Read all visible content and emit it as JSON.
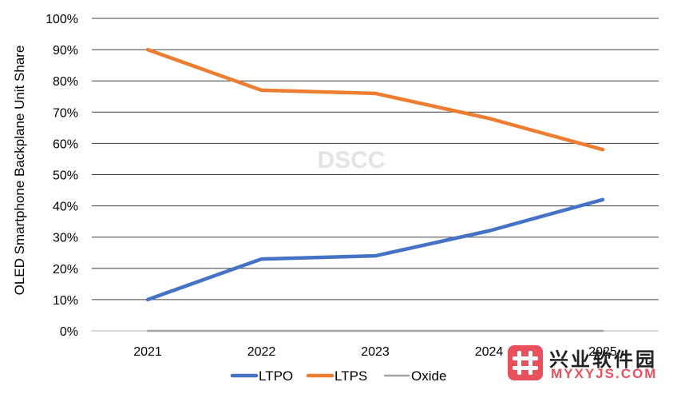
{
  "chart_data": {
    "type": "line",
    "ylabel": "OLED Smartphone Backplane Unit Share",
    "categories": [
      "2021",
      "2022",
      "2023",
      "2024",
      "2025"
    ],
    "ylim": [
      0,
      100
    ],
    "yticks": [
      "0%",
      "10%",
      "20%",
      "30%",
      "40%",
      "50%",
      "60%",
      "70%",
      "80%",
      "90%",
      "100%"
    ],
    "grid": true,
    "legend_position": "bottom",
    "series": [
      {
        "name": "LTPO",
        "color": "#4472c4",
        "values": [
          10,
          23,
          24,
          32,
          42
        ]
      },
      {
        "name": "LTPS",
        "color": "#ed7d31",
        "values": [
          90,
          77,
          76,
          68,
          58
        ]
      },
      {
        "name": "Oxide",
        "color": "#a5a5a5",
        "values": [
          0,
          0,
          0,
          0,
          0
        ]
      }
    ]
  },
  "watermark": "DSCC",
  "logo": {
    "title": "兴业软件园",
    "subtitle": "MYXYJS.COM"
  }
}
